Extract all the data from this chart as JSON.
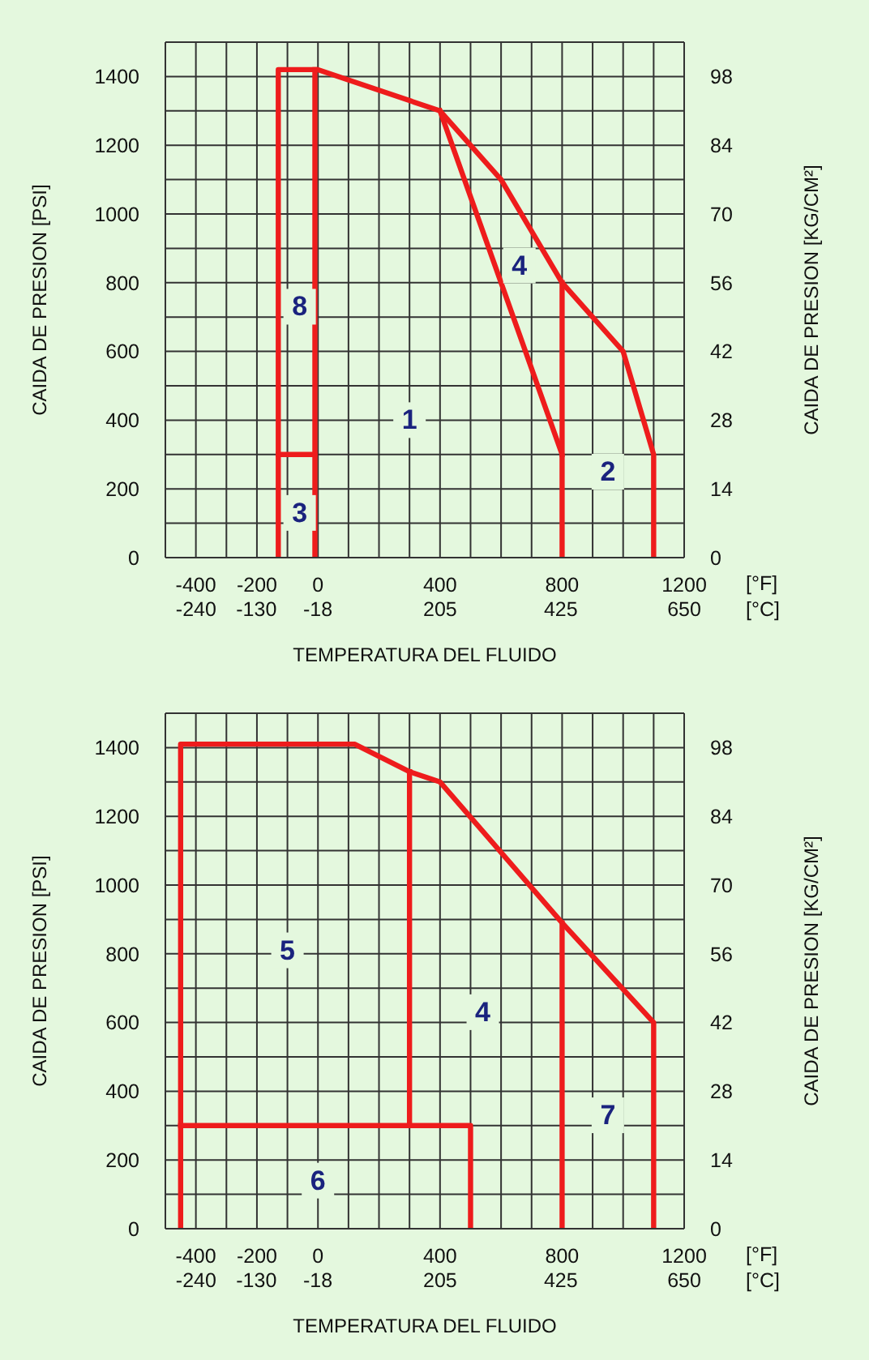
{
  "chart_data": [
    {
      "type": "line",
      "xlabel": "TEMPERATURA DEL FLUIDO",
      "ylabel": "CAIDA DE PRESION [PSI]",
      "y2label": "CAIDA DE PRESION [KG/CM²]",
      "xlim": [
        -500,
        1200
      ],
      "xticks": [
        {
          "value": -500,
          "label": null
        },
        -400,
        {
          "value": -300,
          "label": null
        },
        -200,
        {
          "value": -100,
          "label": null
        },
        0,
        {
          "value": 100,
          "label": null
        },
        {
          "value": 200,
          "label": null
        },
        {
          "value": 300,
          "label": null
        },
        400,
        {
          "value": 500,
          "label": null
        },
        {
          "value": 600,
          "label": null
        },
        {
          "value": 700,
          "label": null
        },
        800,
        {
          "value": 900,
          "label": null
        },
        {
          "value": 1000,
          "label": null
        },
        {
          "value": 1100,
          "label": null
        },
        1200
      ],
      "x2lim": [
        -296,
        650
      ],
      "x2ticks": [
        -240,
        -130,
        -18,
        205,
        425,
        650
      ],
      "ylim": [
        0,
        1500
      ],
      "yticks": [
        0,
        {
          "value": 100,
          "label": null
        },
        200,
        {
          "value": 300,
          "label": null
        },
        400,
        {
          "value": 500,
          "label": null
        },
        600,
        {
          "value": 700,
          "label": null
        },
        800,
        {
          "value": 900,
          "label": null
        },
        1000,
        {
          "value": 1100,
          "label": null
        },
        1200,
        {
          "value": 1300,
          "label": null
        },
        1400,
        {
          "value": 1500,
          "label": null
        }
      ],
      "y2lim": [
        0,
        105
      ],
      "y2ticks": [
        0,
        14,
        28,
        42,
        56,
        70,
        84,
        98
      ],
      "grid": true,
      "marker": "none",
      "series": [
        {
          "color": "#ee1c1c",
          "x": [
            -130,
            -130,
            0,
            400,
            600,
            800,
            1000,
            1100,
            1100
          ],
          "values": [
            0,
            1420,
            1420,
            1300,
            1100,
            800,
            600,
            300,
            0
          ]
        },
        {
          "color": "#ee1c1c",
          "x": [
            -10,
            -10
          ],
          "values": [
            0,
            1420
          ]
        },
        {
          "color": "#ee1c1c",
          "x": [
            -130,
            -10
          ],
          "values": [
            300,
            300
          ]
        },
        {
          "color": "#ee1c1c",
          "x": [
            400,
            800,
            800
          ],
          "values": [
            1300,
            300,
            0
          ]
        },
        {
          "color": "#ee1c1c",
          "x": [
            800,
            800
          ],
          "values": [
            300,
            800
          ]
        }
      ],
      "annotations": [
        "1",
        "8",
        "3",
        "4",
        "2",
        "[°F]",
        "[°C]"
      ]
    },
    {
      "type": "line",
      "xlabel": "TEMPERATURA DEL FLUIDO",
      "ylabel": "CAIDA DE PRESION [PSI]",
      "y2label": "CAIDA DE PRESION [KG/CM²]",
      "xlim": [
        -500,
        1200
      ],
      "xticks": [
        {
          "value": -500,
          "label": null
        },
        -400,
        {
          "value": -300,
          "label": null
        },
        -200,
        {
          "value": -100,
          "label": null
        },
        0,
        {
          "value": 100,
          "label": null
        },
        {
          "value": 200,
          "label": null
        },
        {
          "value": 300,
          "label": null
        },
        400,
        {
          "value": 500,
          "label": null
        },
        {
          "value": 600,
          "label": null
        },
        {
          "value": 700,
          "label": null
        },
        800,
        {
          "value": 900,
          "label": null
        },
        {
          "value": 1000,
          "label": null
        },
        {
          "value": 1100,
          "label": null
        },
        1200
      ],
      "x2lim": [
        -296,
        650
      ],
      "x2ticks": [
        -240,
        -130,
        -18,
        205,
        425,
        650
      ],
      "ylim": [
        0,
        1500
      ],
      "yticks": [
        0,
        {
          "value": 100,
          "label": null
        },
        200,
        {
          "value": 300,
          "label": null
        },
        400,
        {
          "value": 500,
          "label": null
        },
        600,
        {
          "value": 700,
          "label": null
        },
        800,
        {
          "value": 900,
          "label": null
        },
        1000,
        {
          "value": 1100,
          "label": null
        },
        1200,
        {
          "value": 1300,
          "label": null
        },
        1400,
        {
          "value": 1500,
          "label": null
        }
      ],
      "y2lim": [
        0,
        105
      ],
      "y2ticks": [
        0,
        14,
        28,
        42,
        56,
        70,
        84,
        98
      ],
      "grid": true,
      "marker": "none",
      "series": [
        {
          "color": "#ee1c1c",
          "x": [
            -450,
            -450,
            120,
            300,
            400,
            800,
            1100,
            1100
          ],
          "values": [
            0,
            1410,
            1410,
            1330,
            1300,
            890,
            600,
            0
          ]
        },
        {
          "color": "#ee1c1c",
          "x": [
            300,
            300
          ],
          "values": [
            1330,
            300
          ]
        },
        {
          "color": "#ee1c1c",
          "x": [
            -450,
            500,
            500
          ],
          "values": [
            300,
            300,
            0
          ]
        },
        {
          "color": "#ee1c1c",
          "x": [
            800,
            800
          ],
          "values": [
            0,
            890
          ]
        }
      ],
      "annotations": [
        "5",
        "4",
        "6",
        "7",
        "[°F]",
        "[°C]"
      ]
    }
  ]
}
